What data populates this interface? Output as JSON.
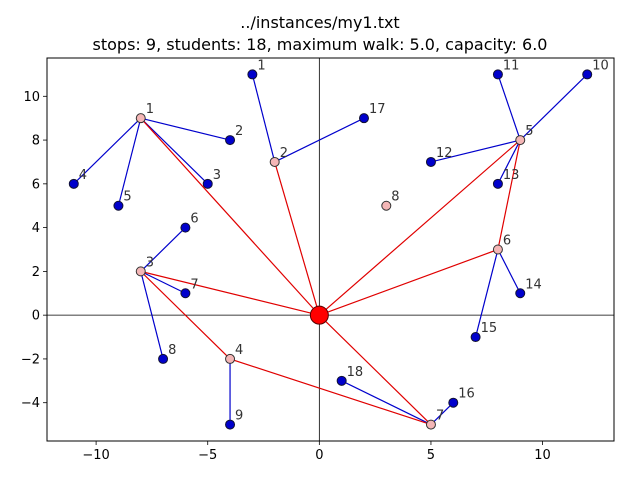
{
  "chart_data": {
    "type": "scatter",
    "title_line1": "../instances/my1.txt",
    "title_line2": "stops: 9, students: 18, maximum walk: 5.0, capacity: 6.0",
    "xlabel": "",
    "ylabel": "",
    "xlim": [
      -12.2,
      13.2
    ],
    "ylim": [
      -5.75,
      11.75
    ],
    "xticks": [
      -10,
      -5,
      0,
      5,
      10
    ],
    "yticks": [
      -4,
      -2,
      0,
      2,
      4,
      6,
      8,
      10
    ],
    "grid": false,
    "depot": {
      "x": 0,
      "y": 0
    },
    "stops": [
      {
        "label": "1",
        "x": -8,
        "y": 9
      },
      {
        "label": "2",
        "x": -2,
        "y": 7
      },
      {
        "label": "3",
        "x": -8,
        "y": 2
      },
      {
        "label": "4",
        "x": -4,
        "y": -2
      },
      {
        "label": "5",
        "x": 9,
        "y": 8
      },
      {
        "label": "6",
        "x": 8,
        "y": 3
      },
      {
        "label": "7",
        "x": 5,
        "y": -5
      },
      {
        "label": "8",
        "x": 3,
        "y": 5
      }
    ],
    "students": [
      {
        "label": "1",
        "x": -3,
        "y": 11,
        "stop": "2"
      },
      {
        "label": "2",
        "x": -4,
        "y": 8,
        "stop": "1"
      },
      {
        "label": "3",
        "x": -5,
        "y": 6,
        "stop": "1"
      },
      {
        "label": "4",
        "x": -11,
        "y": 6,
        "stop": "1"
      },
      {
        "label": "5",
        "x": -9,
        "y": 5,
        "stop": "1"
      },
      {
        "label": "6",
        "x": -6,
        "y": 4,
        "stop": "3"
      },
      {
        "label": "7",
        "x": -6,
        "y": 1,
        "stop": "3"
      },
      {
        "label": "8",
        "x": -7,
        "y": -2,
        "stop": "3"
      },
      {
        "label": "9",
        "x": -4,
        "y": -5,
        "stop": "4"
      },
      {
        "label": "10",
        "x": 12,
        "y": 11,
        "stop": "5"
      },
      {
        "label": "11",
        "x": 8,
        "y": 11,
        "stop": "5"
      },
      {
        "label": "12",
        "x": 5,
        "y": 7,
        "stop": "5"
      },
      {
        "label": "13",
        "x": 8,
        "y": 6,
        "stop": "5"
      },
      {
        "label": "14",
        "x": 9,
        "y": 1,
        "stop": "6"
      },
      {
        "label": "15",
        "x": 7,
        "y": -1,
        "stop": "6"
      },
      {
        "label": "16",
        "x": 6,
        "y": -4,
        "stop": "7"
      },
      {
        "label": "17",
        "x": 2,
        "y": 9,
        "stop": "2"
      },
      {
        "label": "18",
        "x": 1,
        "y": -3,
        "stop": "7"
      }
    ],
    "routes": [
      [
        "depot",
        "1"
      ],
      [
        "depot",
        "2"
      ],
      [
        "depot",
        "3",
        "4",
        "7",
        "depot"
      ],
      [
        "depot",
        "6",
        "5",
        "depot"
      ]
    ],
    "colors": {
      "route": "#e00000",
      "walk": "#0000cc",
      "student": "#0000cc",
      "stop_fill": "#f4b6b6",
      "depot": "#ff0000",
      "axis_line": "#000000"
    }
  }
}
